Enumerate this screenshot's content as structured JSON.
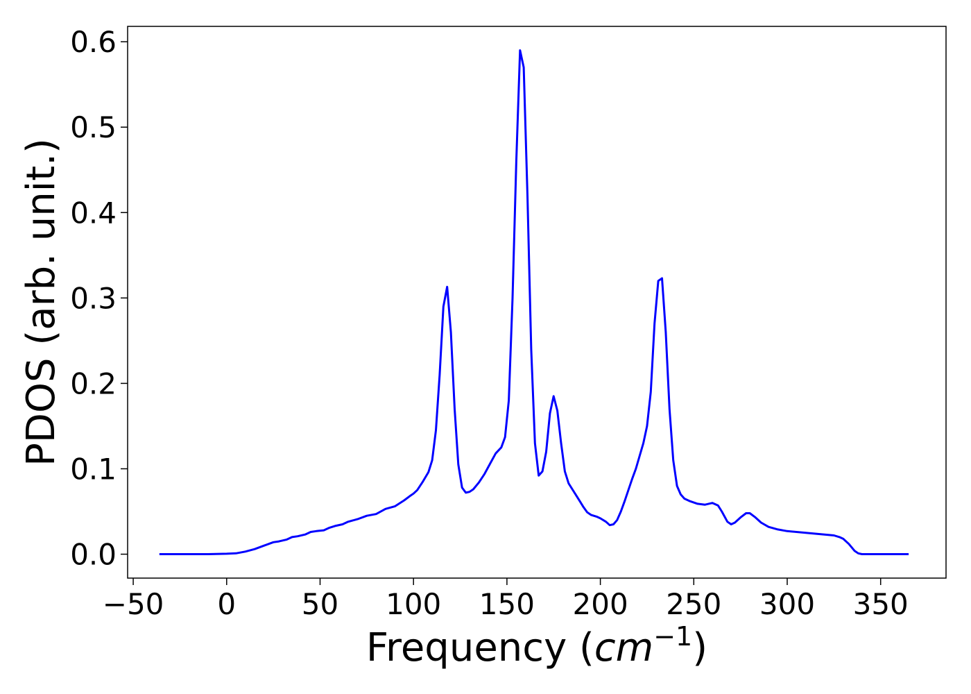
{
  "chart_data": {
    "type": "line",
    "xlabel": {
      "prefix": "Frequency (",
      "italic_base": "cm",
      "superscript": "−1",
      "suffix": ")"
    },
    "ylabel": "PDOS (arb. unit.)",
    "xlim": [
      -53,
      385
    ],
    "ylim": [
      -0.028,
      0.618
    ],
    "x_ticks": [
      -50,
      0,
      50,
      100,
      150,
      200,
      250,
      300,
      350
    ],
    "x_tick_labels": [
      "−50",
      "0",
      "50",
      "100",
      "150",
      "200",
      "250",
      "300",
      "350"
    ],
    "y_ticks": [
      0.0,
      0.1,
      0.2,
      0.3,
      0.4,
      0.5,
      0.6
    ],
    "y_tick_labels": [
      "0.0",
      "0.1",
      "0.2",
      "0.3",
      "0.4",
      "0.5",
      "0.6"
    ],
    "grid": false,
    "line_color": "#0000ff",
    "series": [
      {
        "x": [
          -36,
          -25,
          -10,
          0,
          5,
          10,
          15,
          20,
          25,
          28,
          32,
          35,
          38,
          42,
          45,
          48,
          52,
          55,
          58,
          62,
          65,
          70,
          75,
          80,
          85,
          90,
          95,
          98,
          100,
          102,
          105,
          108,
          110,
          112,
          114,
          116,
          118,
          120,
          122,
          124,
          126,
          128,
          130,
          132,
          135,
          138,
          141,
          144,
          147,
          149,
          151,
          153,
          155,
          157,
          159,
          161,
          163,
          165,
          167,
          169,
          171,
          173,
          175,
          177,
          179,
          181,
          183,
          185,
          187,
          189,
          191,
          193,
          195,
          198,
          200,
          203,
          205,
          207,
          209,
          211,
          213,
          215,
          217,
          219,
          221,
          223,
          225,
          227,
          229,
          231,
          233,
          235,
          237,
          239,
          241,
          243,
          245,
          248,
          252,
          256,
          260,
          263,
          265,
          268,
          270,
          272,
          275,
          278,
          280,
          283,
          286,
          290,
          295,
          300,
          310,
          320,
          325,
          328,
          330,
          333,
          336,
          338,
          340,
          345,
          355,
          365
        ],
        "y": [
          0.0,
          0.0,
          0.0,
          0.0005,
          0.001,
          0.003,
          0.006,
          0.01,
          0.014,
          0.015,
          0.017,
          0.02,
          0.021,
          0.023,
          0.026,
          0.027,
          0.028,
          0.031,
          0.033,
          0.035,
          0.038,
          0.041,
          0.045,
          0.047,
          0.053,
          0.056,
          0.063,
          0.068,
          0.071,
          0.075,
          0.085,
          0.096,
          0.11,
          0.145,
          0.21,
          0.29,
          0.313,
          0.26,
          0.17,
          0.105,
          0.078,
          0.072,
          0.073,
          0.076,
          0.084,
          0.094,
          0.106,
          0.118,
          0.125,
          0.137,
          0.18,
          0.3,
          0.46,
          0.59,
          0.57,
          0.42,
          0.24,
          0.13,
          0.092,
          0.097,
          0.12,
          0.165,
          0.185,
          0.168,
          0.13,
          0.097,
          0.083,
          0.076,
          0.069,
          0.062,
          0.055,
          0.049,
          0.046,
          0.044,
          0.042,
          0.038,
          0.034,
          0.035,
          0.04,
          0.05,
          0.062,
          0.075,
          0.088,
          0.1,
          0.115,
          0.13,
          0.15,
          0.19,
          0.27,
          0.32,
          0.323,
          0.26,
          0.17,
          0.11,
          0.08,
          0.07,
          0.065,
          0.062,
          0.059,
          0.058,
          0.06,
          0.057,
          0.05,
          0.038,
          0.035,
          0.037,
          0.043,
          0.048,
          0.048,
          0.043,
          0.037,
          0.032,
          0.029,
          0.027,
          0.025,
          0.023,
          0.022,
          0.02,
          0.018,
          0.012,
          0.004,
          0.001,
          0.0,
          0.0,
          0.0,
          0.0
        ]
      }
    ]
  }
}
